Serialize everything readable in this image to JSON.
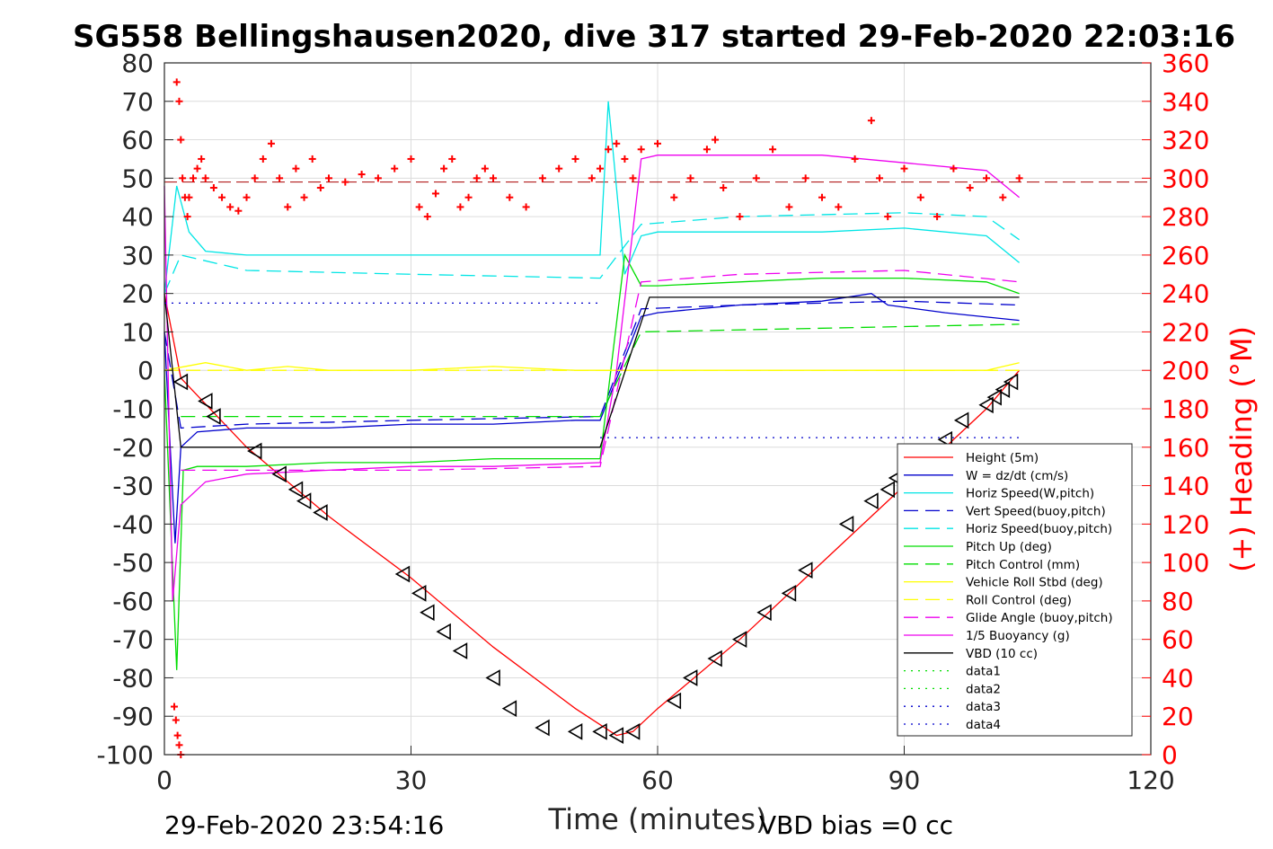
{
  "chart_data": {
    "type": "line",
    "title": "SG558 Bellingshausen2020, dive 317 started 29-Feb-2020 22:03:16",
    "xlabel": "Time (minutes)",
    "ylabel": "",
    "ylabel_right": "(+) Heading (°M)",
    "xlim": [
      0,
      120
    ],
    "ylim": [
      -100,
      80
    ],
    "ylim_right": [
      0,
      360
    ],
    "x_ticks": [
      "0",
      "30",
      "60",
      "90",
      "120"
    ],
    "y_ticks": [
      "80",
      "70",
      "60",
      "50",
      "40",
      "30",
      "20",
      "10",
      "0",
      "-10",
      "-20",
      "-30",
      "-40",
      "-50",
      "-60",
      "-70",
      "-80",
      "-90",
      "-100"
    ],
    "y_ticks_right": [
      "360",
      "340",
      "320",
      "300",
      "280",
      "260",
      "240",
      "220",
      "200",
      "180",
      "160",
      "140",
      "120",
      "100",
      "80",
      "60",
      "40",
      "20",
      "0"
    ],
    "grid": true,
    "legend_position": "lower-right",
    "footer_left": "29-Feb-2020 23:54:16",
    "footer_right": "VBD bias =0 cc",
    "series": [
      {
        "name": "Height (5m)",
        "color": "#ff0000",
        "dash": "solid",
        "x": [
          0,
          2,
          10,
          20,
          30,
          40,
          50,
          55,
          57,
          60,
          70,
          80,
          90,
          100,
          104
        ],
        "y": [
          20,
          -2,
          -20,
          -38,
          -54,
          -72,
          -88,
          -95,
          -94,
          -88,
          -70,
          -50,
          -30,
          -10,
          0
        ]
      },
      {
        "name": "W = dz/dt (cm/s)",
        "color": "#0000cc",
        "dash": "solid",
        "x": [
          0,
          1.3,
          2,
          4,
          10,
          20,
          30,
          40,
          50,
          53,
          58,
          60,
          70,
          80,
          86,
          88,
          95,
          104
        ],
        "y": [
          10,
          -45,
          -20,
          -16,
          -15,
          -15,
          -14,
          -14,
          -13,
          -13,
          14,
          15,
          17,
          18,
          20,
          17,
          15,
          13
        ]
      },
      {
        "name": "Horiz Speed(W,pitch)",
        "color": "#00e5e5",
        "dash": "solid",
        "x": [
          0,
          1.5,
          3,
          5,
          10,
          20,
          30,
          40,
          50,
          53,
          54,
          56,
          58,
          60,
          70,
          80,
          90,
          100,
          104
        ],
        "y": [
          20,
          48,
          36,
          31,
          30,
          30,
          30,
          30,
          30,
          30,
          70,
          25,
          35,
          36,
          36,
          36,
          37,
          35,
          28
        ]
      },
      {
        "name": "Vert Speed(buoy,pitch)",
        "color": "#0000cc",
        "dash": "long",
        "x": [
          0,
          2,
          10,
          30,
          53,
          58,
          70,
          90,
          104
        ],
        "y": [
          10,
          -15,
          -14,
          -13,
          -12,
          16,
          17,
          18,
          17
        ]
      },
      {
        "name": "Horiz Speed(buoy,pitch)",
        "color": "#00e5e5",
        "dash": "long",
        "x": [
          0,
          2,
          10,
          30,
          53,
          58,
          70,
          90,
          100,
          104
        ],
        "y": [
          20,
          30,
          26,
          25,
          24,
          38,
          40,
          41,
          40,
          34
        ]
      },
      {
        "name": "Pitch Up (deg)",
        "color": "#00dd00",
        "dash": "solid",
        "x": [
          0,
          1.5,
          2.3,
          4,
          10,
          20,
          30,
          40,
          53,
          56,
          58,
          60,
          70,
          80,
          90,
          100,
          104
        ],
        "y": [
          0,
          -78,
          -26,
          -25,
          -25,
          -24,
          -24,
          -23,
          -23,
          30,
          22,
          22,
          23,
          24,
          24,
          23,
          20
        ]
      },
      {
        "name": "Pitch Control (mm)",
        "color": "#00dd00",
        "dash": "long",
        "x": [
          2,
          53,
          58,
          104
        ],
        "y": [
          -12,
          -12,
          10,
          12
        ]
      },
      {
        "name": "Vehicle Roll Stbd (deg)",
        "color": "#ffff00",
        "dash": "solid",
        "x": [
          0,
          5,
          10,
          15,
          20,
          30,
          40,
          50,
          60,
          70,
          80,
          90,
          100,
          104
        ],
        "y": [
          0,
          2,
          0,
          1,
          0,
          0,
          1,
          0,
          0,
          0,
          0,
          0,
          0,
          2
        ]
      },
      {
        "name": "Roll Control (deg)",
        "color": "#ffff00",
        "dash": "long",
        "x": [
          0,
          5,
          15,
          30,
          45,
          53,
          60,
          75,
          90,
          104
        ],
        "y": [
          0,
          0,
          0,
          0,
          0,
          0,
          0,
          0,
          0,
          0
        ]
      },
      {
        "name": "Glide Angle (buoy,pitch)",
        "color": "#ee00ee",
        "dash": "long",
        "x": [
          2,
          10,
          30,
          53,
          58,
          70,
          90,
          104
        ],
        "y": [
          -26,
          -26,
          -26,
          -25,
          23,
          25,
          26,
          23
        ]
      },
      {
        "name": "1/5 Buoyancy (g)",
        "color": "#ee00ee",
        "dash": "solid",
        "x": [
          0,
          1,
          2,
          5,
          10,
          20,
          30,
          40,
          53,
          55,
          58,
          60,
          70,
          80,
          90,
          100,
          104
        ],
        "y": [
          48,
          -60,
          -35,
          -29,
          -27,
          -26,
          -25,
          -25,
          -24,
          0,
          55,
          56,
          56,
          56,
          54,
          52,
          45
        ]
      },
      {
        "name": "VBD (10 cc)",
        "color": "#000000",
        "dash": "solid",
        "x": [
          0,
          2,
          10,
          20,
          30,
          40,
          53,
          59,
          60,
          70,
          80,
          90,
          100,
          104
        ],
        "y": [
          20,
          -20,
          -20,
          -20,
          -20,
          -20,
          -20,
          19,
          19,
          19,
          19,
          19,
          19,
          19
        ]
      },
      {
        "name": "data1",
        "color": "#00dd00",
        "dash": "dotted",
        "x": [],
        "y": []
      },
      {
        "name": "data2",
        "color": "#00dd00",
        "dash": "dotted",
        "x": [],
        "y": []
      },
      {
        "name": "data3",
        "color": "#0000cc",
        "dash": "dotted",
        "x": [
          0,
          53
        ],
        "y": [
          17.5,
          17.5
        ]
      },
      {
        "name": "data4",
        "color": "#0000cc",
        "dash": "dotted",
        "x": [
          53,
          104
        ],
        "y": [
          -17.5,
          -17.5
        ]
      }
    ],
    "reference_lines": {
      "heading_mean": {
        "color": "#aa0000",
        "axis": "right",
        "y": 298
      }
    },
    "heading_points": {
      "color": "#ff0000",
      "marker": "+",
      "axis": "right",
      "x": [
        1.5,
        1.8,
        2,
        2.2,
        2.5,
        2.8,
        3,
        3.5,
        4,
        4.5,
        5,
        6,
        7,
        8,
        9,
        10,
        11,
        12,
        13,
        14,
        15,
        16,
        17,
        18,
        19,
        20,
        22,
        24,
        26,
        28,
        30,
        31,
        32,
        33,
        34,
        35,
        36,
        37,
        38,
        39,
        40,
        42,
        44,
        46,
        48,
        50,
        52,
        53,
        54,
        55,
        56,
        57,
        58,
        60,
        62,
        64,
        66,
        67,
        68,
        70,
        72,
        74,
        76,
        78,
        80,
        82,
        84,
        86,
        87,
        88,
        90,
        92,
        94,
        96,
        98,
        100,
        102,
        104
      ],
      "y": [
        350,
        340,
        320,
        300,
        290,
        280,
        290,
        300,
        305,
        310,
        300,
        295,
        290,
        285,
        283,
        290,
        300,
        310,
        318,
        300,
        285,
        305,
        290,
        310,
        295,
        300,
        298,
        302,
        300,
        305,
        310,
        285,
        280,
        292,
        305,
        310,
        285,
        290,
        300,
        305,
        300,
        290,
        285,
        300,
        305,
        310,
        300,
        305,
        315,
        318,
        310,
        300,
        315,
        318,
        290,
        300,
        315,
        320,
        295,
        280,
        300,
        315,
        285,
        300,
        290,
        285,
        310,
        330,
        300,
        280,
        305,
        290,
        280,
        305,
        295,
        300,
        290,
        300
      ],
      "x_early": [
        1.2,
        1.4,
        1.6,
        1.8,
        2
      ],
      "y_early": [
        25,
        18,
        10,
        5,
        0
      ]
    },
    "marker_points": {
      "marker": "triangle-left",
      "color": "#000000",
      "x": [
        2,
        5,
        6,
        11,
        14,
        16,
        17,
        19,
        29,
        31,
        32,
        34,
        36,
        40,
        42,
        46,
        50,
        53,
        55,
        57,
        62,
        64,
        67,
        70,
        73,
        76,
        78,
        83,
        86,
        88,
        89,
        92,
        95,
        97,
        100,
        101,
        102,
        103
      ],
      "y": [
        -3,
        -8,
        -12,
        -21,
        -27,
        -31,
        -34,
        -37,
        -53,
        -58,
        -63,
        -68,
        -73,
        -80,
        -88,
        -93,
        -94,
        -94,
        -95,
        -94,
        -86,
        -80,
        -75,
        -70,
        -63,
        -58,
        -52,
        -40,
        -34,
        -31,
        -28,
        -22,
        -18,
        -13,
        -9,
        -7,
        -5,
        -3
      ]
    }
  }
}
